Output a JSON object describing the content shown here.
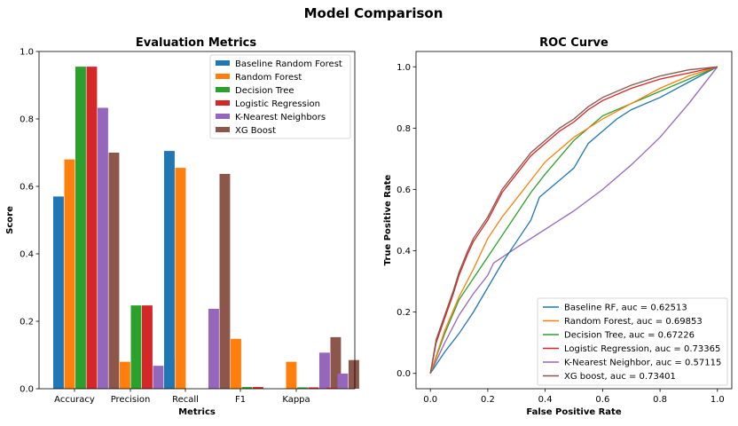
{
  "figure_title": "Model Comparison",
  "colors": [
    "#1f77b4",
    "#ff7f0e",
    "#2ca02c",
    "#d62728",
    "#9467bd",
    "#8c564b"
  ],
  "chart_data": [
    {
      "type": "bar",
      "title": "Evaluation Metrics",
      "xlabel": "Metrics",
      "ylabel": "Score",
      "ylim": [
        0,
        1
      ],
      "yticks": [
        "0.0",
        "0.2",
        "0.4",
        "0.6",
        "0.8",
        "1.0"
      ],
      "categories": [
        "Accuracy",
        "Precision",
        "Recall",
        "F1",
        "Kappa"
      ],
      "legend": "top-right",
      "series": [
        {
          "name": "Baseline Random Forest",
          "values": [
            0.57,
            0.0,
            0.705,
            0.0,
            0.0
          ]
        },
        {
          "name": "Random Forest",
          "values": [
            0.68,
            0.08,
            0.655,
            0.148,
            0.08
          ]
        },
        {
          "name": "Decision Tree",
          "values": [
            0.955,
            0.247,
            0.0,
            0.005,
            0.004
          ]
        },
        {
          "name": "Logistic Regression",
          "values": [
            0.955,
            0.247,
            0.0,
            0.005,
            0.004
          ]
        },
        {
          "name": "K-Nearest Neighbors",
          "values": [
            0.833,
            0.068,
            0.237,
            0.0,
            0.107
          ]
        },
        {
          "name": "XG Boost",
          "values": [
            0.7,
            0.09,
            0.637,
            0.0,
            0.153
          ]
        }
      ],
      "extra_series_values": [
        {
          "series": "K-Nearest Neighbors",
          "category": "Kappa",
          "value": 0.045
        },
        {
          "series": "XG Boost",
          "category": "Kappa",
          "value": 0.085
        },
        {
          "series": "Logistic Regression",
          "category": "Kappa",
          "value": 0.003
        }
      ]
    },
    {
      "type": "line",
      "title": "ROC Curve",
      "xlabel": "False Positive Rate",
      "ylabel": "True Positive Rate",
      "xlim": [
        -0.05,
        1.05
      ],
      "ylim": [
        -0.05,
        1.05
      ],
      "xticks": [
        "0.0",
        "0.2",
        "0.4",
        "0.6",
        "0.8",
        "1.0"
      ],
      "yticks": [
        "0.0",
        "0.2",
        "0.4",
        "0.6",
        "0.8",
        "1.0"
      ],
      "legend": "bottom-right",
      "series": [
        {
          "name": "Baseline RF, auc = 0.62513",
          "x": [
            0,
            0.05,
            0.1,
            0.15,
            0.2,
            0.25,
            0.3,
            0.35,
            0.38,
            0.45,
            0.5,
            0.55,
            0.6,
            0.65,
            0.7,
            0.8,
            0.9,
            1.0
          ],
          "y": [
            0,
            0.07,
            0.13,
            0.2,
            0.28,
            0.36,
            0.43,
            0.5,
            0.575,
            0.63,
            0.67,
            0.75,
            0.79,
            0.83,
            0.86,
            0.9,
            0.95,
            1.0
          ]
        },
        {
          "name": "Random Forest, auc = 0.69853",
          "x": [
            0,
            0.05,
            0.1,
            0.15,
            0.2,
            0.25,
            0.3,
            0.35,
            0.4,
            0.5,
            0.6,
            0.7,
            0.8,
            0.9,
            1.0
          ],
          "y": [
            0,
            0.14,
            0.25,
            0.34,
            0.44,
            0.51,
            0.57,
            0.63,
            0.69,
            0.77,
            0.83,
            0.88,
            0.93,
            0.97,
            1.0
          ]
        },
        {
          "name": "Decision Tree, auc = 0.67226",
          "x": [
            0,
            0.05,
            0.1,
            0.15,
            0.2,
            0.25,
            0.3,
            0.35,
            0.4,
            0.5,
            0.6,
            0.7,
            0.8,
            0.9,
            1.0
          ],
          "y": [
            0,
            0.13,
            0.24,
            0.31,
            0.38,
            0.45,
            0.52,
            0.59,
            0.65,
            0.76,
            0.84,
            0.88,
            0.92,
            0.96,
            1.0
          ]
        },
        {
          "name": "Logistic Regression, auc = 0.73365",
          "x": [
            0,
            0.02,
            0.05,
            0.08,
            0.1,
            0.13,
            0.15,
            0.2,
            0.25,
            0.3,
            0.35,
            0.4,
            0.45,
            0.5,
            0.55,
            0.6,
            0.7,
            0.8,
            0.9,
            1.0
          ],
          "y": [
            0,
            0.1,
            0.18,
            0.26,
            0.32,
            0.39,
            0.43,
            0.5,
            0.59,
            0.65,
            0.71,
            0.75,
            0.79,
            0.82,
            0.86,
            0.89,
            0.93,
            0.96,
            0.98,
            1.0
          ]
        },
        {
          "name": "K-Nearest Neighbor, auc = 0.57115",
          "x": [
            0,
            0.05,
            0.1,
            0.15,
            0.2,
            0.22,
            0.3,
            0.4,
            0.5,
            0.6,
            0.7,
            0.8,
            0.9,
            1.0
          ],
          "y": [
            0,
            0.1,
            0.19,
            0.26,
            0.32,
            0.36,
            0.41,
            0.47,
            0.53,
            0.6,
            0.68,
            0.77,
            0.88,
            1.0
          ]
        },
        {
          "name": "XG boost, auc = 0.73401",
          "x": [
            0,
            0.02,
            0.05,
            0.08,
            0.1,
            0.13,
            0.15,
            0.2,
            0.25,
            0.3,
            0.35,
            0.4,
            0.45,
            0.5,
            0.55,
            0.6,
            0.7,
            0.8,
            0.9,
            1.0
          ],
          "y": [
            0,
            0.11,
            0.19,
            0.27,
            0.33,
            0.4,
            0.44,
            0.51,
            0.6,
            0.66,
            0.72,
            0.76,
            0.8,
            0.83,
            0.87,
            0.9,
            0.94,
            0.97,
            0.99,
            1.0
          ]
        }
      ],
      "diagonal": "none"
    }
  ]
}
